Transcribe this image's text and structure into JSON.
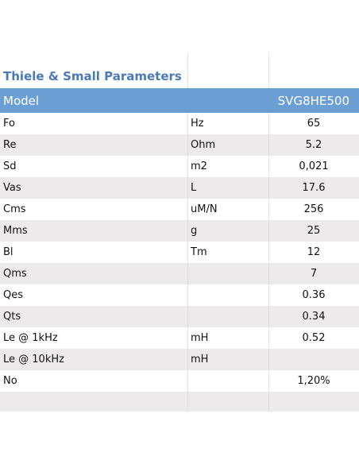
{
  "title": "Thiele & Small Parameters",
  "header": {
    "label": "Model",
    "model": "SVG8HE500"
  },
  "rows": [
    {
      "param": "Fo",
      "unit": "Hz",
      "value": "65"
    },
    {
      "param": "Re",
      "unit": "Ohm",
      "value": "5.2"
    },
    {
      "param": "Sd",
      "unit": "m2",
      "value": "0,021"
    },
    {
      "param": "Vas",
      "unit": "L",
      "value": "17.6"
    },
    {
      "param": "Cms",
      "unit": "uM/N",
      "value": "256"
    },
    {
      "param": "Mms",
      "unit": "g",
      "value": "25"
    },
    {
      "param": "Bl",
      "unit": "Tm",
      "value": "12"
    },
    {
      "param": "Qms",
      "unit": "",
      "value": "7"
    },
    {
      "param": "Qes",
      "unit": "",
      "value": "0.36"
    },
    {
      "param": "Qts",
      "unit": "",
      "value": "0.34"
    },
    {
      "param": "Le @ 1kHz",
      "unit": "mH",
      "value": "0.52"
    },
    {
      "param": "Le @ 10kHz",
      "unit": "mH",
      "value": ""
    },
    {
      "param": "No",
      "unit": "",
      "value": "1,20%"
    }
  ],
  "colors": {
    "header_bg": "#6b9fd4",
    "title_text": "#4a7ab8",
    "stripe": "#eceaea"
  }
}
